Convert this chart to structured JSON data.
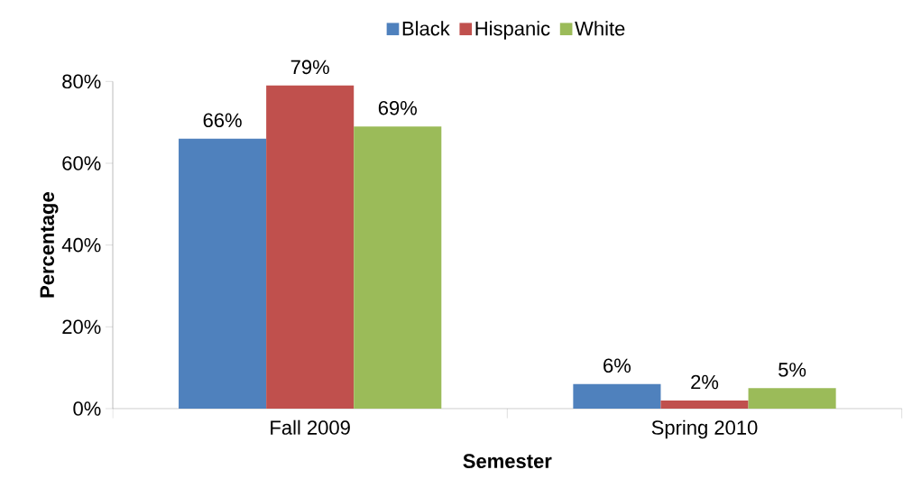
{
  "chart_data": {
    "type": "bar",
    "xlabel": "Semester",
    "ylabel": "Percentage",
    "categories": [
      "Fall 2009",
      "Spring 2010"
    ],
    "series": [
      {
        "name": "Black",
        "color": "#4f81bd",
        "values": [
          66,
          6
        ],
        "value_labels": [
          "66%",
          "6%"
        ]
      },
      {
        "name": "Hispanic",
        "color": "#c0504d",
        "values": [
          79,
          2
        ],
        "value_labels": [
          "79%",
          "2%"
        ]
      },
      {
        "name": "White",
        "color": "#9bbb59",
        "values": [
          69,
          5
        ],
        "value_labels": [
          "69%",
          "5%"
        ]
      }
    ],
    "ylim": [
      0,
      80
    ],
    "yticks": [
      {
        "value": 0,
        "label": "0%"
      },
      {
        "value": 20,
        "label": "20%"
      },
      {
        "value": 40,
        "label": "40%"
      },
      {
        "value": 60,
        "label": "60%"
      },
      {
        "value": 80,
        "label": "80%"
      }
    ],
    "legend": "top"
  }
}
